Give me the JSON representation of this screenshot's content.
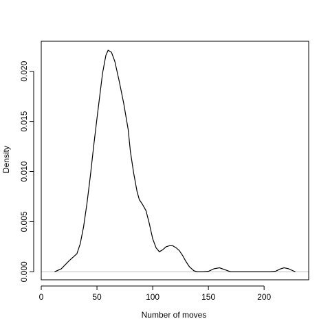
{
  "chart_data": {
    "type": "line",
    "title": "",
    "xlabel": "Number of moves",
    "ylabel": "Density",
    "xlim": [
      0,
      240
    ],
    "ylim": [
      -0.0008,
      0.023
    ],
    "x_ticks": [
      0,
      50,
      100,
      150,
      200
    ],
    "x_tick_labels": [
      "0",
      "50",
      "100",
      "150",
      "200"
    ],
    "y_ticks": [
      0.0,
      0.005,
      0.01,
      0.015,
      0.02
    ],
    "y_tick_labels": [
      "0.000",
      "0.005",
      "0.010",
      "0.015",
      "0.020"
    ],
    "baseline": 0,
    "grid": false,
    "legend": "none",
    "colors": {
      "line": "#000000",
      "baseline": "#bebebe",
      "axis": "#000000",
      "background": "#ffffff"
    },
    "series": [
      {
        "x": [
          12,
          18,
          25,
          32,
          35,
          38,
          41,
          44,
          47,
          50,
          53,
          55,
          58,
          60,
          63,
          66,
          70,
          74,
          78,
          80,
          83,
          86,
          88,
          91,
          94,
          97,
          100,
          103,
          106,
          109,
          112,
          115,
          118,
          121,
          124,
          127,
          130,
          133,
          137,
          140,
          145,
          150,
          155,
          160,
          165,
          170,
          175,
          185,
          195,
          205,
          210,
          215,
          218,
          222,
          226,
          228
        ],
        "y": [
          0.0,
          0.0003,
          0.0011,
          0.0018,
          0.0028,
          0.0045,
          0.0068,
          0.0095,
          0.0125,
          0.0153,
          0.018,
          0.0198,
          0.0216,
          0.0221,
          0.0219,
          0.021,
          0.019,
          0.0168,
          0.0142,
          0.012,
          0.0098,
          0.008,
          0.0072,
          0.0067,
          0.0061,
          0.0048,
          0.0033,
          0.0024,
          0.002,
          0.0022,
          0.0025,
          0.0026,
          0.0026,
          0.0024,
          0.0021,
          0.0016,
          0.001,
          0.0005,
          0.0001,
          0.0,
          0.0,
          5e-05,
          0.0003,
          0.0004,
          0.0002,
          0.0,
          0.0,
          0.0,
          0.0,
          0.0,
          5e-05,
          0.0003,
          0.0004,
          0.0003,
          0.0001,
          0.0
        ]
      }
    ]
  }
}
